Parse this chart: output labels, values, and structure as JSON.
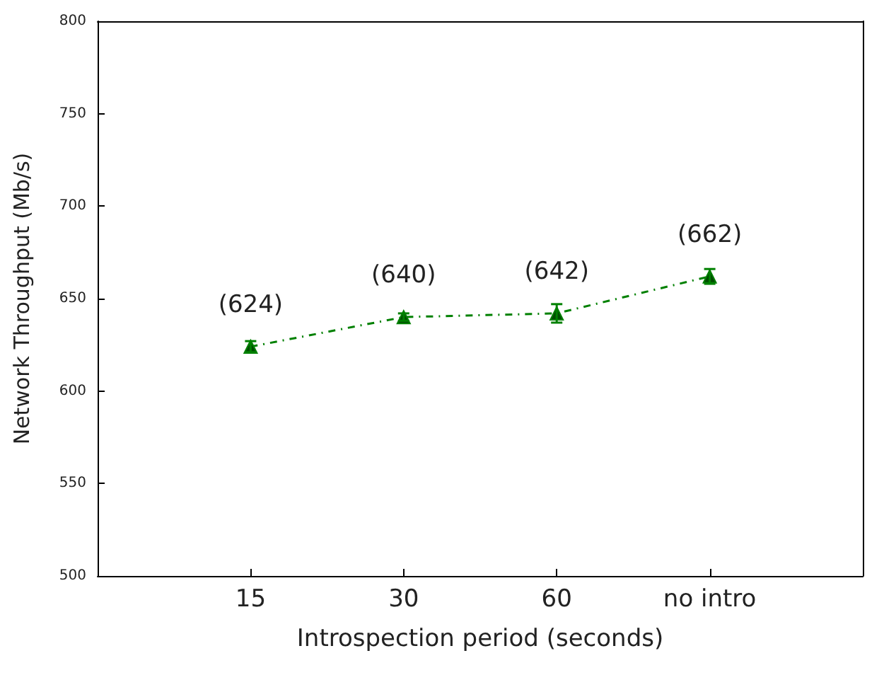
{
  "chart_data": {
    "type": "line",
    "xlabel": "Introspection period (seconds)",
    "ylabel": "Network Throughput (Mb/s)",
    "categories": [
      "15",
      "30",
      "60",
      "no intro"
    ],
    "series": [
      {
        "color": "#008000",
        "values": [
          624,
          640,
          642,
          662
        ],
        "errors": [
          3,
          2,
          5,
          4
        ],
        "value_labels": [
          "(624)",
          "(640)",
          "(642)",
          "(662)"
        ]
      }
    ],
    "ylim": [
      500,
      800
    ],
    "yticks": [
      500,
      550,
      600,
      650,
      700,
      750,
      800
    ],
    "grid": false,
    "marker": "triangle",
    "line_style": "dashdot"
  }
}
